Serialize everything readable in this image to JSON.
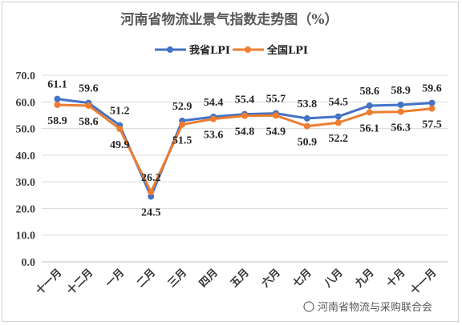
{
  "watermark": "河南省物流与采购联合会",
  "chart_data": {
    "type": "line",
    "title": "河南省物流业景气指数走势图（%）",
    "categories": [
      "十一月",
      "十二月",
      "一月",
      "二月",
      "三月",
      "四月",
      "五月",
      "六月",
      "七月",
      "八月",
      "九月",
      "十月",
      "十一月"
    ],
    "series": [
      {
        "name": "我省LPI",
        "color": "#4472C4",
        "values": [
          61.1,
          59.6,
          51.2,
          24.5,
          52.9,
          54.4,
          55.4,
          55.7,
          53.8,
          54.5,
          58.6,
          58.9,
          59.6
        ]
      },
      {
        "name": "全国LPI",
        "color": "#ED7D31",
        "values": [
          58.9,
          58.6,
          49.9,
          26.2,
          51.5,
          53.6,
          54.8,
          54.9,
          50.9,
          52.2,
          56.1,
          56.3,
          57.5
        ]
      }
    ],
    "ylim": [
      0,
      70
    ],
    "yticks": [
      "0.0",
      "10.0",
      "20.0",
      "30.0",
      "40.0",
      "50.0",
      "60.0",
      "70.0"
    ],
    "grid": true,
    "legend": "top-center"
  }
}
